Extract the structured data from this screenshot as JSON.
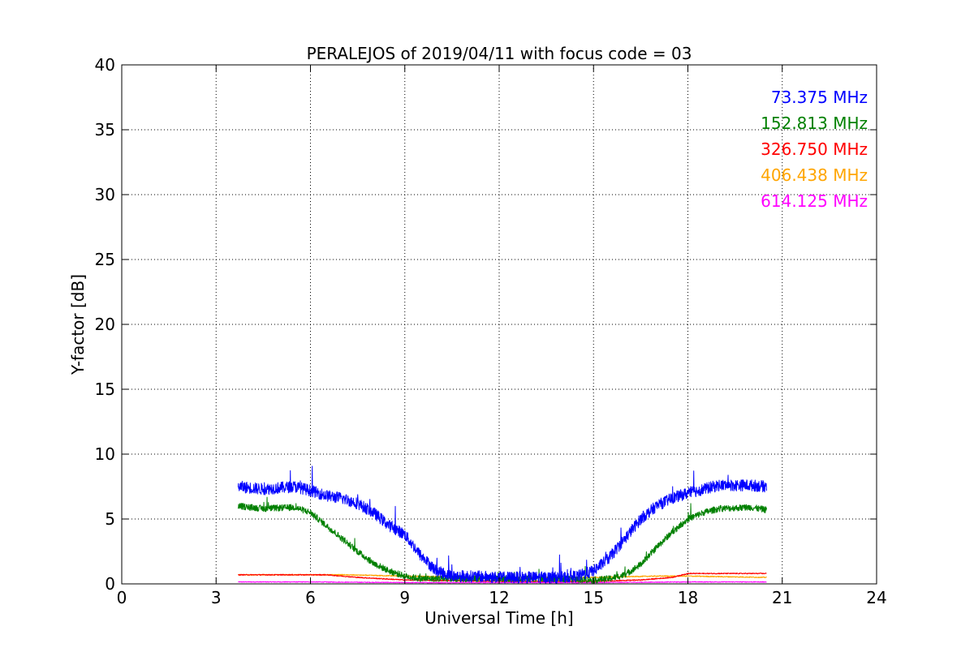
{
  "chart_data": {
    "type": "line",
    "title": "PERALEJOS of 2019/04/11 with focus code = 03",
    "xlabel": "Universal Time [h]",
    "ylabel": "Y-factor [dB]",
    "xlim": [
      0,
      24
    ],
    "ylim": [
      0,
      40
    ],
    "xticks": [
      "0",
      "3",
      "6",
      "9",
      "12",
      "15",
      "18",
      "21",
      "24"
    ],
    "yticks": [
      "0",
      "5",
      "10",
      "15",
      "20",
      "25",
      "30",
      "35",
      "40"
    ],
    "grid": true,
    "legend_position": "top-right",
    "series": [
      {
        "name": "73.375 MHz",
        "color": "#0000ff",
        "x": [
          3.7,
          4.5,
          5.5,
          6.0,
          6.5,
          7.0,
          7.5,
          8.0,
          8.5,
          9.0,
          9.5,
          10.0,
          10.5,
          11.0,
          12.0,
          13.0,
          14.0,
          14.5,
          15.0,
          15.5,
          16.0,
          16.5,
          17.0,
          17.5,
          18.0,
          18.5,
          19.0,
          20.0,
          20.5
        ],
        "y": [
          7.5,
          7.3,
          7.5,
          7.2,
          6.8,
          6.6,
          6.2,
          5.5,
          4.5,
          3.8,
          2.2,
          1.0,
          0.6,
          0.6,
          0.5,
          0.5,
          0.5,
          0.6,
          1.0,
          2.0,
          3.5,
          5.0,
          6.0,
          6.6,
          7.0,
          7.3,
          7.6,
          7.6,
          7.5
        ],
        "noise": 0.45
      },
      {
        "name": "152.813 MHz",
        "color": "#008000",
        "x": [
          3.7,
          4.5,
          5.5,
          6.0,
          6.5,
          7.0,
          7.5,
          8.0,
          8.5,
          9.0,
          9.5,
          10.0,
          11.0,
          12.0,
          13.0,
          14.0,
          15.0,
          15.5,
          16.0,
          16.5,
          17.0,
          17.5,
          18.0,
          18.5,
          19.0,
          20.0,
          20.5
        ],
        "y": [
          6.0,
          5.8,
          5.9,
          5.5,
          4.5,
          3.5,
          2.5,
          1.6,
          1.0,
          0.6,
          0.4,
          0.4,
          0.4,
          0.4,
          0.4,
          0.4,
          0.3,
          0.4,
          0.7,
          1.5,
          2.8,
          4.0,
          5.0,
          5.5,
          5.8,
          5.9,
          5.7
        ],
        "noise": 0.25
      },
      {
        "name": "326.750 MHz",
        "color": "#ff0000",
        "x": [
          3.7,
          6.5,
          7.5,
          9.0,
          12.0,
          15.0,
          16.5,
          17.5,
          18.0,
          20.5
        ],
        "y": [
          0.7,
          0.7,
          0.5,
          0.3,
          0.2,
          0.2,
          0.3,
          0.5,
          0.8,
          0.8
        ],
        "noise": 0.04
      },
      {
        "name": "406.438 MHz",
        "color": "#ffa500",
        "x": [
          3.7,
          7.0,
          9.0,
          12.0,
          15.0,
          17.0,
          18.0,
          20.5
        ],
        "y": [
          0.7,
          0.7,
          0.6,
          0.5,
          0.5,
          0.6,
          0.6,
          0.5
        ],
        "noise": 0.04
      },
      {
        "name": "614.125 MHz",
        "color": "#ff00ff",
        "x": [
          3.7,
          6.0,
          9.0,
          12.0,
          15.0,
          18.0,
          20.5
        ],
        "y": [
          0.15,
          0.15,
          0.1,
          0.1,
          0.1,
          0.15,
          0.15
        ],
        "noise": 0.03
      }
    ]
  }
}
